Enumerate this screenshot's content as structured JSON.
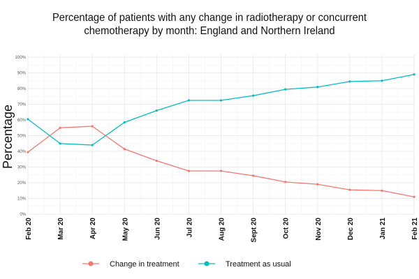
{
  "chart_data": {
    "type": "line",
    "title_lines": [
      "Percentage of patients with any change in radiotherapy or concurrent",
      "chemotherapy by month: England and Northern Ireland"
    ],
    "xlabel": "",
    "ylabel": "Percentage",
    "categories": [
      "Feb 20",
      "Mar 20",
      "Apr 20",
      "May 20",
      "Jun 20",
      "Jul 20",
      "Aug 20",
      "Sept 20",
      "Oct 20",
      "Nov 20",
      "Dec 20",
      "Jan 21",
      "Feb 21"
    ],
    "y_ticks": [
      "0%",
      "10%",
      "20%",
      "30%",
      "40%",
      "50%",
      "60%",
      "70%",
      "80%",
      "90%",
      "100%"
    ],
    "ylim": [
      0,
      100
    ],
    "grid": true,
    "legend_position": "bottom",
    "series": [
      {
        "name": "Change in treatment",
        "color": "#F8766D",
        "values": [
          39.5,
          55,
          56,
          41.5,
          34,
          27.5,
          27.5,
          24.5,
          20.5,
          19,
          15.5,
          15,
          11
        ]
      },
      {
        "name": "Treatment as usual",
        "color": "#00BFC4",
        "values": [
          60.5,
          45,
          44,
          58.5,
          66,
          72.5,
          72.5,
          75.5,
          79.5,
          81,
          84.5,
          85,
          89
        ]
      }
    ]
  }
}
